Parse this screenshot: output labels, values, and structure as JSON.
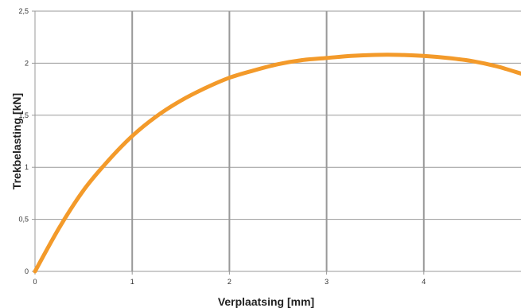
{
  "chart_data": {
    "type": "line",
    "xlabel": "Verplaatsing [mm]",
    "ylabel": "Trekbelasting [kN]",
    "xlim": [
      0,
      5
    ],
    "ylim": [
      0,
      2.5
    ],
    "x_ticks": [
      0,
      1,
      2,
      3,
      4
    ],
    "x_tick_labels": [
      "0",
      "1",
      "2",
      "3",
      "4"
    ],
    "y_ticks": [
      0,
      0.5,
      1,
      1.5,
      2,
      2.5
    ],
    "y_tick_labels": [
      "0",
      "0,5",
      "1",
      "1,5",
      "2",
      "2,5"
    ],
    "grid": true,
    "legend": "none",
    "series": [
      {
        "color": "#f39a2a",
        "x": [
          0,
          0.25,
          0.5,
          0.75,
          1.0,
          1.25,
          1.5,
          1.75,
          2.0,
          2.25,
          2.5,
          2.75,
          3.0,
          3.25,
          3.5,
          3.75,
          4.0,
          4.25,
          4.5,
          4.75,
          5.0
        ],
        "y": [
          0,
          0.42,
          0.78,
          1.06,
          1.3,
          1.49,
          1.64,
          1.76,
          1.86,
          1.93,
          1.99,
          2.03,
          2.05,
          2.07,
          2.08,
          2.08,
          2.07,
          2.05,
          2.02,
          1.97,
          1.9
        ]
      }
    ],
    "colors": {
      "grid": "#999999",
      "axis": "#999999"
    }
  }
}
